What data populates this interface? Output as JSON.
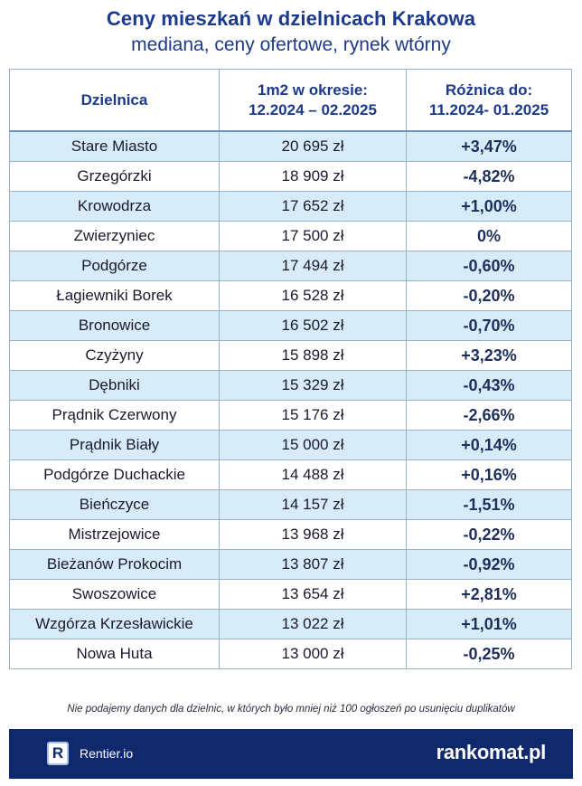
{
  "header": {
    "title": "Ceny mieszkań w dzielnicach Krakowa",
    "subtitle": "mediana, ceny ofertowe, rynek wtórny"
  },
  "table": {
    "columns": {
      "district": "Dzielnica",
      "price_line1": "1m2 w okresie:",
      "price_line2": "12.2024 – 02.2025",
      "diff_line1": "Różnica do:",
      "diff_line2": "11.2024- 01.2025"
    },
    "rows": [
      {
        "district": "Stare Miasto",
        "price": "20 695 zł",
        "diff": "+3,47%"
      },
      {
        "district": "Grzegórzki",
        "price": "18 909 zł",
        "diff": "-4,82%"
      },
      {
        "district": "Krowodrza",
        "price": "17 652 zł",
        "diff": "+1,00%"
      },
      {
        "district": "Zwierzyniec",
        "price": "17 500 zł",
        "diff": "0%"
      },
      {
        "district": "Podgórze",
        "price": "17 494 zł",
        "diff": "-0,60%"
      },
      {
        "district": "Łagiewniki Borek",
        "price": "16 528 zł",
        "diff": "-0,20%"
      },
      {
        "district": "Bronowice",
        "price": "16 502 zł",
        "diff": "-0,70%"
      },
      {
        "district": "Czyżyny",
        "price": "15 898 zł",
        "diff": "+3,23%"
      },
      {
        "district": "Dębniki",
        "price": "15 329 zł",
        "diff": "-0,43%"
      },
      {
        "district": "Prądnik Czerwony",
        "price": "15 176 zł",
        "diff": "-2,66%"
      },
      {
        "district": "Prądnik Biały",
        "price": "15 000 zł",
        "diff": "+0,14%"
      },
      {
        "district": "Podgórze Duchackie",
        "price": "14 488 zł",
        "diff": "+0,16%"
      },
      {
        "district": "Bieńczyce",
        "price": "14 157 zł",
        "diff": "-1,51%"
      },
      {
        "district": "Mistrzejowice",
        "price": "13 968 zł",
        "diff": "-0,22%"
      },
      {
        "district": "Bieżanów Prokocim",
        "price": "13 807 zł",
        "diff": "-0,92%"
      },
      {
        "district": "Swoszowice",
        "price": "13 654 zł",
        "diff": "+2,81%"
      },
      {
        "district": "Wzgórza Krzesławickie",
        "price": "13 022 zł",
        "diff": "+1,01%"
      },
      {
        "district": "Nowa Huta",
        "price": "13 000 zł",
        "diff": "-0,25%"
      }
    ]
  },
  "footnote": "Nie podajemy danych dla dzielnic, w których było mniej niż 100 ogłoszeń po usunięciu duplikatów",
  "footer": {
    "logo_letter": "R",
    "left_brand": "Rentier.io",
    "right_brand": "rankomat.pl"
  },
  "colors": {
    "title": "#1d3a8a",
    "stripe": "#d7ebf8",
    "footer_bg": "#10286c"
  }
}
